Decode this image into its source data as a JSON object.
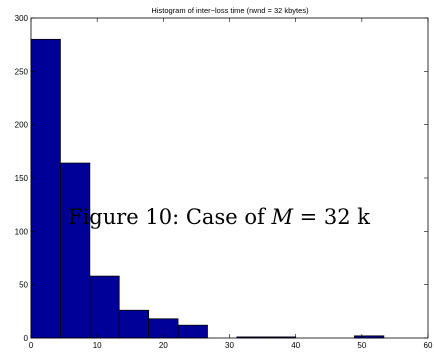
{
  "chart_data": {
    "type": "bar",
    "title": "Histogram of inter−loss time (rwnd = 32 kbytes)",
    "xlabel": "",
    "ylabel": "",
    "xlim": [
      0,
      60
    ],
    "ylim": [
      0,
      300
    ],
    "xticks": [
      0,
      10,
      20,
      30,
      40,
      50,
      60
    ],
    "yticks": [
      0,
      50,
      100,
      150,
      200,
      250,
      300
    ],
    "grid": false,
    "bin_width": 4.44,
    "bars": [
      {
        "x0": 0.0,
        "x1": 4.44,
        "value": 280
      },
      {
        "x0": 4.44,
        "x1": 8.89,
        "value": 164
      },
      {
        "x0": 8.89,
        "x1": 13.33,
        "value": 58
      },
      {
        "x0": 13.33,
        "x1": 17.78,
        "value": 26
      },
      {
        "x0": 17.78,
        "x1": 22.22,
        "value": 18
      },
      {
        "x0": 22.22,
        "x1": 26.67,
        "value": 12
      },
      {
        "x0": 26.67,
        "x1": 31.11,
        "value": 0
      },
      {
        "x0": 31.11,
        "x1": 35.56,
        "value": 1
      },
      {
        "x0": 35.56,
        "x1": 40.0,
        "value": 1
      },
      {
        "x0": 40.0,
        "x1": 44.44,
        "value": 0
      },
      {
        "x0": 44.44,
        "x1": 48.89,
        "value": 0
      },
      {
        "x0": 48.89,
        "x1": 53.33,
        "value": 2
      }
    ],
    "bar_color": "#000099",
    "bar_edge_color": "#000000"
  },
  "caption": {
    "prefix": "Figure 10:  Case of ",
    "variable": "M",
    "suffix": " = 32 k"
  }
}
